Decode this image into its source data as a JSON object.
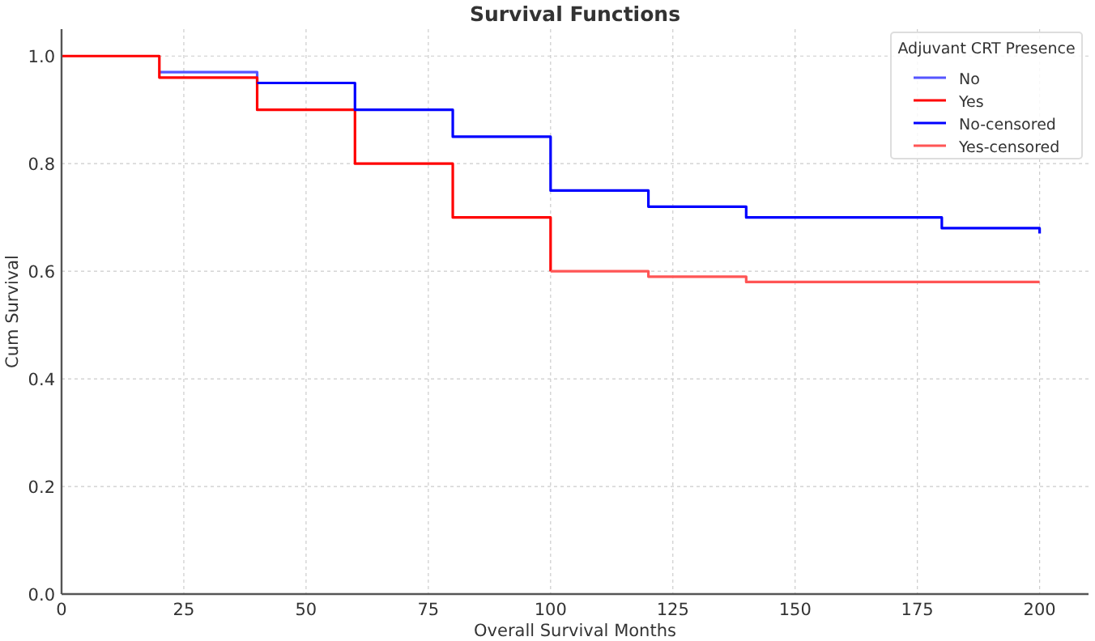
{
  "chart_data": {
    "type": "step",
    "title": "Survival Functions",
    "xlabel": "Overall Survival Months",
    "ylabel": "Cum Survival",
    "legend_title": "Adjuvant CRT Presence",
    "xlim": [
      0,
      210
    ],
    "ylim": [
      0,
      1.05
    ],
    "xticks": [
      0,
      25,
      50,
      75,
      100,
      125,
      150,
      175,
      200
    ],
    "yticks": [
      {
        "value": 0,
        "label": "0.0"
      },
      {
        "value": 0.2,
        "label": "0.2"
      },
      {
        "value": 0.4,
        "label": "0.4"
      },
      {
        "value": 0.6,
        "label": "0.6"
      },
      {
        "value": 0.8,
        "label": "0.8"
      },
      {
        "value": 1,
        "label": "1.0"
      }
    ],
    "grid": true,
    "legend": "top right",
    "line_style": "solid",
    "series": [
      {
        "name": "No",
        "color": "#5555ff",
        "x": [
          20,
          40
        ],
        "values": [
          0.97,
          0.95
        ]
      },
      {
        "name": "Yes",
        "color": "#ff0000",
        "x": [
          0,
          20,
          40,
          60,
          80,
          100
        ],
        "values": [
          1,
          0.96,
          0.9,
          0.8,
          0.7,
          0.6
        ]
      },
      {
        "name": "No-censored",
        "color": "#0000ff",
        "x": [
          40,
          60,
          80,
          100,
          120,
          140,
          180,
          200,
          200
        ],
        "values": [
          0.95,
          0.9,
          0.85,
          0.75,
          0.72,
          0.7,
          0.68,
          0.68,
          0.67
        ]
      },
      {
        "name": "Yes-censored",
        "color": "#ff5555",
        "x": [
          100,
          120,
          140,
          200
        ],
        "values": [
          0.6,
          0.59,
          0.58,
          0.58
        ]
      }
    ]
  }
}
